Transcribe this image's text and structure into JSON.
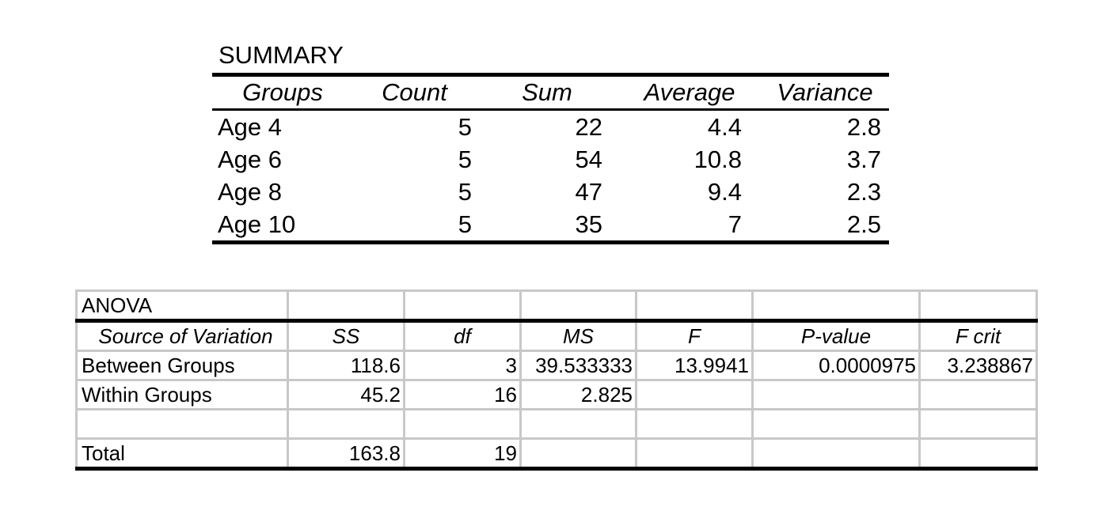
{
  "summary": {
    "title": "SUMMARY",
    "headers": {
      "groups": "Groups",
      "count": "Count",
      "sum": "Sum",
      "average": "Average",
      "variance": "Variance"
    },
    "rows": [
      {
        "group": "Age 4",
        "count": "5",
        "sum": "22",
        "average": "4.4",
        "variance": "2.8"
      },
      {
        "group": "Age 6",
        "count": "5",
        "sum": "54",
        "average": "10.8",
        "variance": "3.7"
      },
      {
        "group": "Age 8",
        "count": "5",
        "sum": "47",
        "average": "9.4",
        "variance": "2.3"
      },
      {
        "group": "Age 10",
        "count": "5",
        "sum": "35",
        "average": "7",
        "variance": "2.5"
      }
    ]
  },
  "anova": {
    "title": "ANOVA",
    "headers": {
      "source": "Source of Variation",
      "ss": "SS",
      "df": "df",
      "ms": "MS",
      "f": "F",
      "p_value": "P-value",
      "f_crit": "F crit"
    },
    "between": {
      "label": "Between Groups",
      "ss": "118.6",
      "df": "3",
      "ms": "39.533333",
      "f": "13.9941",
      "p_value": "0.0000975",
      "f_crit": "3.238867"
    },
    "within": {
      "label": "Within Groups",
      "ss": "45.2",
      "df": "16",
      "ms": "2.825"
    },
    "total": {
      "label": "Total",
      "ss": "163.8",
      "df": "19"
    }
  }
}
